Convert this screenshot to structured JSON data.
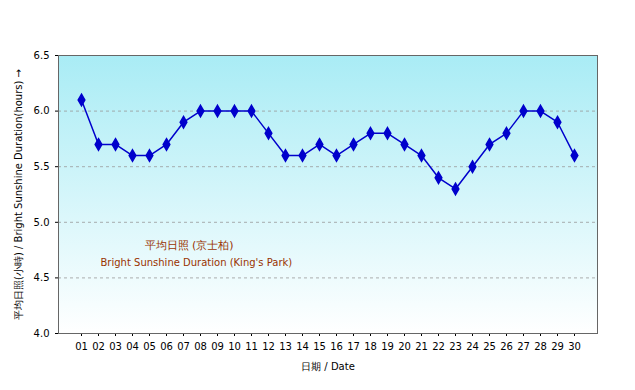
{
  "chart_data": {
    "type": "line",
    "x_label": "日期 / Date",
    "y_label": "平均日照(小時) / Bright Sunshine Duration(hours)",
    "annotations": [
      "平均日照 (京士柏)",
      "Bright Sunshine Duration (King's Park)"
    ],
    "categories": [
      "01",
      "02",
      "03",
      "04",
      "05",
      "06",
      "07",
      "08",
      "09",
      "10",
      "11",
      "12",
      "13",
      "14",
      "15",
      "16",
      "17",
      "18",
      "19",
      "20",
      "21",
      "22",
      "23",
      "24",
      "25",
      "26",
      "27",
      "28",
      "29",
      "30"
    ],
    "values": [
      6.1,
      5.7,
      5.7,
      5.6,
      5.6,
      5.7,
      5.9,
      6.0,
      6.0,
      6.0,
      6.0,
      5.8,
      5.6,
      5.6,
      5.7,
      5.6,
      5.7,
      5.8,
      5.8,
      5.7,
      5.6,
      5.4,
      5.3,
      5.5,
      5.7,
      5.8,
      6.0,
      6.0,
      5.9,
      5.6
    ],
    "color": "#0000cc",
    "marker": "diamond",
    "ylim": [
      4.0,
      6.5
    ],
    "yticks": [
      {
        "value": 4,
        "label": "4.0"
      },
      {
        "value": 4.5,
        "label": "4.5"
      },
      {
        "value": 5,
        "label": "5.0"
      },
      {
        "value": 5.5,
        "label": "5.5"
      },
      {
        "value": 6,
        "label": "6.0"
      },
      {
        "value": 6.5,
        "label": "6.5"
      }
    ],
    "grid": true
  }
}
